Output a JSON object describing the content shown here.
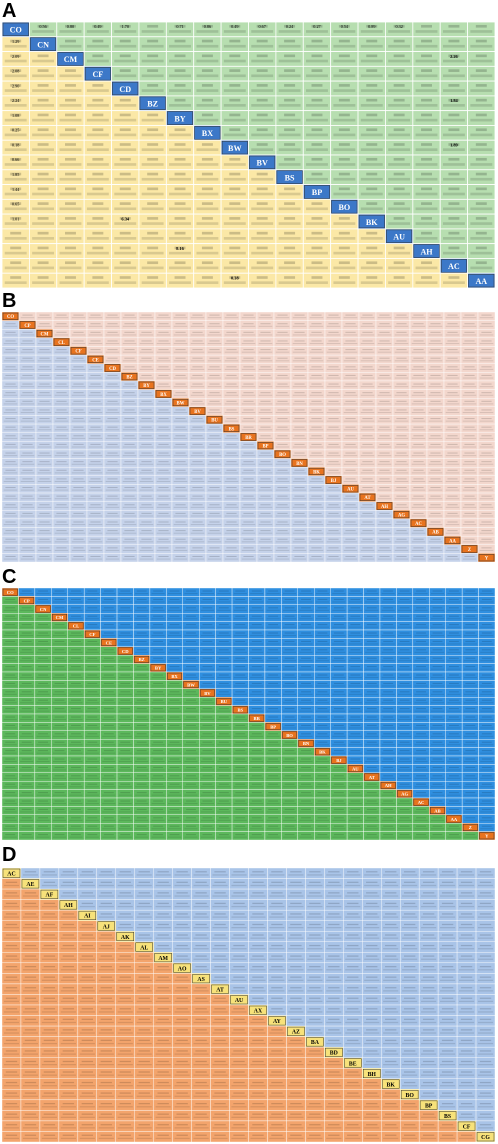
{
  "panels": [
    {
      "letter": "A",
      "labels": [
        "CO",
        "CN",
        "CM",
        "CF",
        "CD",
        "BZ",
        "BY",
        "BX",
        "BW",
        "BV",
        "BS",
        "BP",
        "BO",
        "BK",
        "AU",
        "AH",
        "AC",
        "AA"
      ],
      "colors": {
        "upper": "#b7deb0",
        "lower": "#fbe8a6",
        "diag": "#3c78c8",
        "diag_text": "#ffffff"
      },
      "highlight_upper": [
        "2.26",
        "1.84",
        "1.89"
      ],
      "highlight_lower": [
        "6.34",
        "8.16",
        "0.38"
      ],
      "sample_upper": [
        "0.56",
        "0.80",
        "0.49",
        "1.70",
        "0.71",
        "0.86",
        "0.49",
        "0.67",
        "0.24",
        "0.27",
        "0.54",
        "0.89",
        "0.32"
      ],
      "sample_lower": [
        "1.29",
        "2.09",
        "2.08",
        "2.90",
        "2.24",
        "1.08",
        "0.25",
        "0.18",
        "0.66",
        "1.85",
        "1.44",
        "0.65",
        "1.01"
      ]
    },
    {
      "letter": "B",
      "labels": [
        "CO",
        "CP",
        "CM",
        "CL",
        "CF",
        "CE",
        "CD",
        "BZ",
        "BY",
        "BX",
        "BW",
        "BV",
        "BU",
        "BS",
        "BR",
        "BP",
        "BO",
        "BN",
        "BK",
        "BJ",
        "AU",
        "AT",
        "AH",
        "AG",
        "AC",
        "AB",
        "AA",
        "Z",
        "Y"
      ],
      "colors": {
        "upper": "#f3d7cd",
        "lower": "#c5d2ea",
        "diag": "#e8731e",
        "diag_text": "#ffffff"
      }
    },
    {
      "letter": "C",
      "labels": [
        "CO",
        "CP",
        "CN",
        "CM",
        "CL",
        "CF",
        "CE",
        "CD",
        "BZ",
        "BY",
        "BX",
        "BW",
        "BV",
        "BU",
        "BS",
        "BR",
        "BP",
        "BO",
        "BN",
        "BK",
        "BJ",
        "AU",
        "AT",
        "AH",
        "AG",
        "AC",
        "AB",
        "AA",
        "Z",
        "Y"
      ],
      "colors": {
        "upper": "#2f8fe0",
        "lower": "#5cb85c",
        "diag": "#e8731e",
        "diag_text": "#ffffff"
      }
    },
    {
      "letter": "D",
      "labels": [
        "AC",
        "AE",
        "AF",
        "AH",
        "AI",
        "AJ",
        "AK",
        "AL",
        "AM",
        "AO",
        "AS",
        "AT",
        "AU",
        "AX",
        "AY",
        "AZ",
        "BA",
        "BD",
        "BE",
        "BH",
        "BK",
        "BO",
        "BP",
        "BS",
        "CF",
        "CG"
      ],
      "colors": {
        "upper": "#a9c4e8",
        "lower": "#f3a46c",
        "diag": "#f7e27a",
        "diag_text": "#000000"
      }
    }
  ]
}
